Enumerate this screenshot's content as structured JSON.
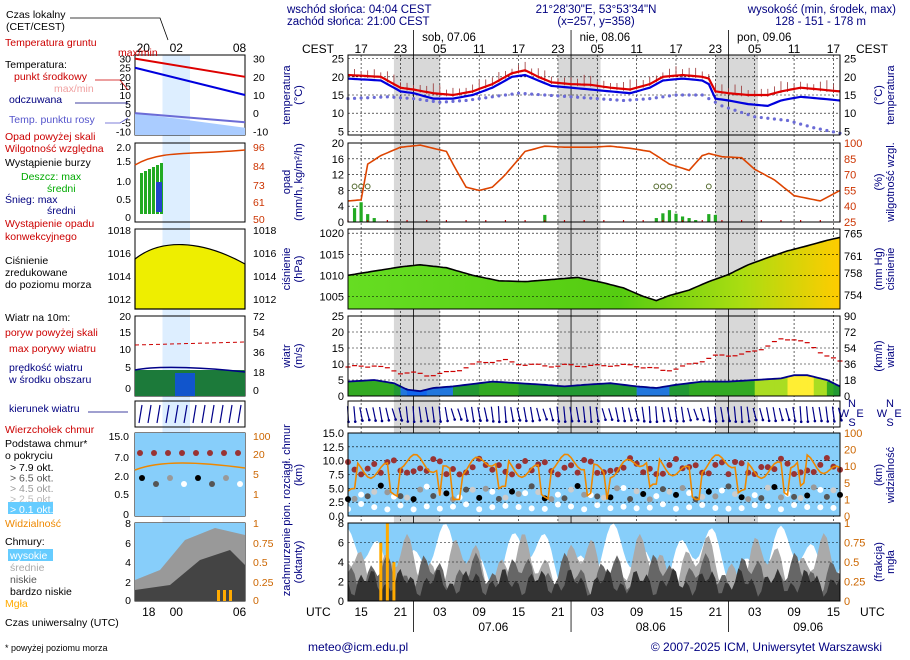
{
  "header": {
    "sunrise": "wschód słońca: 04:04 CEST",
    "sunset": "zachód słońca: 21:00 CEST",
    "coords": "21°28'30\"E, 53°53'34\"N",
    "grid": "(x=257, y=358)",
    "elev_title": "wysokość (min, środek, max)",
    "elev_values": "128 - 151 - 178 m"
  },
  "legend": {
    "time_local": [
      "Czas lokalny",
      "(CET/CEST)"
    ],
    "soil_temp": [
      "Temperatura gruntu",
      "max/min"
    ],
    "temp_title": "Temperatura:",
    "mid_point": "punkt środkowy",
    "max_min": "max/min",
    "perceived": "odczuwana",
    "dew": "Temp. punktu rosy",
    "precip_above": "Opad powyżej skali",
    "humidity": "Wilgotność względna",
    "storm": "Wystąpienie burzy",
    "rain_max": "Deszcz: max",
    "rain_mid": "średni",
    "snow_max": "Śnieg:  max",
    "snow_mid": "średni",
    "conv": [
      "Wystąpienie opadu",
      "konwekcyjnego"
    ],
    "pressure": [
      "Ciśnienie",
      "zredukowane",
      "do poziomu morza"
    ],
    "wind10": "Wiatr na 10m:",
    "gust_above": "poryw powyżej skali",
    "gust_max": "max porywy wiatru",
    "wind_speed": [
      "prędkość wiatru",
      "w środku obszaru"
    ],
    "wind_dir": "kierunek wiatru",
    "cloud_top": "Wierzchołek chmur",
    "cloud_base": [
      "Podstawa chmur*",
      "o pokryciu"
    ],
    "okt": [
      "> 7.9 okt.",
      "> 6.5 okt.",
      "> 4.5 okt.",
      "> 2.5 okt.",
      "> 0.1 okt."
    ],
    "visibility": "Widzialność",
    "clouds": "Chmury:",
    "cloud_levels": [
      "wysokie",
      "średnie",
      "niskie",
      "bardzo niskie"
    ],
    "fog": "Mgła",
    "utc_title": "Czas uniwersalny (UTC)",
    "footnote": "* powyżej poziomu morza"
  },
  "footer": {
    "email": "meteo@icm.edu.pl",
    "copyright": "© 2007-2025 ICM, Uniwersytet Warszawski"
  },
  "axes": {
    "cest": "CEST",
    "utc": "UTC",
    "cest_ticks": [
      "17",
      "23",
      "05",
      "11",
      "17",
      "23",
      "05",
      "11",
      "17",
      "23",
      "05",
      "11",
      "17"
    ],
    "utc_ticks": [
      "15",
      "21",
      "03",
      "09",
      "15",
      "21",
      "03",
      "09",
      "15",
      "21",
      "03",
      "09",
      "15"
    ],
    "dates_top": [
      "sob, 07.06",
      "nie, 08.06",
      "pon, 09.06"
    ],
    "dates_bottom": [
      "07.06",
      "08.06",
      "09.06"
    ],
    "legend_cest_ticks": [
      "20",
      "02",
      "08"
    ],
    "legend_utc_ticks": [
      "18",
      "00",
      "06"
    ],
    "temp_left": "temperatura\n(°C)",
    "temp_right": "(°C)\ntemperatura",
    "precip_left": "opad\n(mm/h, kg/m²/h)",
    "precip_right": "(%)\nwilgotność wzgl.",
    "press_left": "ciśnienie\n(hPa)",
    "press_right": "(mm Hg)\nciśnienie",
    "wind_left": "wiatr\n(m/s)",
    "wind_right": "(km/h)\nwiatr",
    "cloudbase_left": "pion. rozciągł. chmur\n(km)",
    "cloudbase_right": "(km)\nwidzialność",
    "clouds_left": "zachmurzenie\n(oktanty)",
    "clouds_right": "(frakcja)\nmgła",
    "compass": [
      "N",
      "S",
      "W",
      "E"
    ]
  },
  "chart_data": {
    "type": "line",
    "time_axis_utc_start": "06.06 13:00",
    "hours": 75,
    "panels": {
      "temperature": {
        "ylim": [
          4,
          26
        ],
        "ticks": [
          5,
          10,
          15,
          20,
          25
        ],
        "series": [
          {
            "name": "punkt środkowy",
            "color": "#dd0000",
            "values_keyframes": [
              [
                0,
                20.5
              ],
              [
                5,
                20
              ],
              [
                8,
                17
              ],
              [
                10,
                16.5
              ],
              [
                13,
                15.5
              ],
              [
                16,
                15
              ],
              [
                19,
                16
              ],
              [
                22,
                18
              ],
              [
                25,
                21
              ],
              [
                27,
                21.8
              ],
              [
                29,
                20
              ],
              [
                31,
                18.5
              ],
              [
                34,
                18
              ],
              [
                37,
                17.8
              ],
              [
                40,
                17
              ],
              [
                43,
                16.5
              ],
              [
                46,
                18
              ],
              [
                48,
                20
              ],
              [
                51,
                20.5
              ],
              [
                54,
                20
              ],
              [
                55,
                19.5
              ],
              [
                56,
                16
              ],
              [
                58,
                15.5
              ],
              [
                61,
                15
              ],
              [
                64,
                15
              ],
              [
                66,
                16
              ],
              [
                69,
                17
              ],
              [
                72,
                16.5
              ],
              [
                75,
                16
              ]
            ]
          },
          {
            "name": "odczuwana",
            "color": "#0000dd",
            "values_keyframes": [
              [
                0,
                19.5
              ],
              [
                5,
                19
              ],
              [
                8,
                16
              ],
              [
                10,
                15.5
              ],
              [
                13,
                14
              ],
              [
                16,
                14
              ],
              [
                19,
                15
              ],
              [
                22,
                17
              ],
              [
                25,
                20
              ],
              [
                27,
                20.5
              ],
              [
                29,
                19
              ],
              [
                31,
                17.5
              ],
              [
                34,
                17
              ],
              [
                37,
                16.5
              ],
              [
                40,
                16
              ],
              [
                43,
                15.5
              ],
              [
                46,
                17
              ],
              [
                48,
                19
              ],
              [
                51,
                19.5
              ],
              [
                54,
                19
              ],
              [
                55,
                18
              ],
              [
                56,
                14
              ],
              [
                58,
                13.5
              ],
              [
                61,
                12.5
              ],
              [
                64,
                12
              ],
              [
                66,
                13.5
              ],
              [
                69,
                14.5
              ],
              [
                72,
                14
              ],
              [
                75,
                13.5
              ]
            ]
          },
          {
            "name": "Temp. punktu rosy",
            "color": "#6b6bd6",
            "values_keyframes": [
              [
                0,
                14
              ],
              [
                6,
                14.5
              ],
              [
                10,
                14
              ],
              [
                14,
                13
              ],
              [
                18,
                13.5
              ],
              [
                22,
                14.5
              ],
              [
                26,
                15.5
              ],
              [
                30,
                15
              ],
              [
                34,
                14.5
              ],
              [
                38,
                14
              ],
              [
                42,
                13.5
              ],
              [
                46,
                14
              ],
              [
                50,
                15
              ],
              [
                54,
                15
              ],
              [
                57,
                12
              ],
              [
                62,
                9
              ],
              [
                67,
                8
              ],
              [
                71,
                6
              ],
              [
                75,
                4.5
              ]
            ]
          }
        ]
      },
      "precip_humidity": {
        "precip_ylim": [
          0,
          20
        ],
        "precip_ticks": [
          0,
          4,
          8,
          12,
          16,
          20
        ],
        "humidity_ylim": [
          25,
          100
        ],
        "humidity_ticks": [
          25,
          40,
          55,
          70,
          85,
          100
        ],
        "humidity_keyframes": [
          [
            0,
            45
          ],
          [
            2,
            46
          ],
          [
            3,
            80
          ],
          [
            5,
            88
          ],
          [
            8,
            96
          ],
          [
            11,
            98
          ],
          [
            15,
            92
          ],
          [
            16,
            80
          ],
          [
            18,
            58
          ],
          [
            20,
            55
          ],
          [
            22,
            58
          ],
          [
            24,
            70
          ],
          [
            27,
            92
          ],
          [
            30,
            97
          ],
          [
            33,
            96
          ],
          [
            37,
            96
          ],
          [
            40,
            97
          ],
          [
            43,
            95
          ],
          [
            46,
            92
          ],
          [
            49,
            80
          ],
          [
            52,
            74
          ],
          [
            54,
            88
          ],
          [
            55,
            90
          ],
          [
            57,
            87
          ],
          [
            60,
            86
          ],
          [
            62,
            75
          ],
          [
            65,
            65
          ],
          [
            68,
            50
          ],
          [
            72,
            45
          ],
          [
            75,
            55
          ]
        ],
        "rain_bars": [
          [
            1,
            3.5
          ],
          [
            2,
            5
          ],
          [
            3,
            2
          ],
          [
            4,
            1
          ],
          [
            30,
            1.8
          ],
          [
            47,
            1
          ],
          [
            48,
            2.2
          ],
          [
            49,
            3
          ],
          [
            50,
            2.1
          ],
          [
            51,
            1.4
          ],
          [
            52,
            1
          ],
          [
            53,
            0.5
          ],
          [
            55,
            2
          ],
          [
            56,
            1.8
          ]
        ],
        "storm_hours": [
          1,
          2,
          3,
          47,
          48,
          49,
          55
        ]
      },
      "pressure": {
        "ylim_hpa": [
          1002,
          1021
        ],
        "ticks_hpa": [
          1005,
          1010,
          1015,
          1020
        ],
        "ticks_mmhg": [
          754,
          758,
          761,
          765
        ],
        "keyframes": [
          [
            0,
            1010
          ],
          [
            4,
            1011
          ],
          [
            8,
            1012
          ],
          [
            11,
            1012.5
          ],
          [
            15,
            1011.8
          ],
          [
            19,
            1010
          ],
          [
            23,
            1008.7
          ],
          [
            27,
            1008.5
          ],
          [
            31,
            1009
          ],
          [
            35,
            1009.5
          ],
          [
            39,
            1008.2
          ],
          [
            42,
            1007
          ],
          [
            45,
            1005
          ],
          [
            47,
            1004
          ],
          [
            49,
            1005.2
          ],
          [
            52,
            1006.5
          ],
          [
            55,
            1008.5
          ],
          [
            58,
            1010.2
          ],
          [
            61,
            1012.5
          ],
          [
            64,
            1014.2
          ],
          [
            67,
            1015.8
          ],
          [
            70,
            1017
          ],
          [
            73,
            1018.3
          ],
          [
            75,
            1019
          ]
        ]
      },
      "wind": {
        "ylim_ms": [
          0,
          25
        ],
        "ticks_ms": [
          0,
          5,
          10,
          15,
          20,
          25
        ],
        "ticks_kmh": [
          0,
          18,
          36,
          54,
          72,
          90
        ],
        "speed_keyframes": [
          [
            0,
            4.5
          ],
          [
            4,
            5
          ],
          [
            7,
            4
          ],
          [
            9,
            2
          ],
          [
            11,
            1.5
          ],
          [
            13,
            2.5
          ],
          [
            16,
            3
          ],
          [
            18,
            3.5
          ],
          [
            22,
            4.5
          ],
          [
            26,
            4
          ],
          [
            30,
            3.5
          ],
          [
            33,
            3
          ],
          [
            36,
            3.5
          ],
          [
            40,
            4
          ],
          [
            44,
            3
          ],
          [
            47,
            2.5
          ],
          [
            50,
            3.5
          ],
          [
            54,
            4.5
          ],
          [
            58,
            4.5
          ],
          [
            62,
            5
          ],
          [
            66,
            5.5
          ],
          [
            68,
            6.5
          ],
          [
            70,
            6.5
          ],
          [
            73,
            5
          ],
          [
            75,
            3
          ]
        ],
        "gust_keyframes": [
          [
            0,
            9
          ],
          [
            4,
            10
          ],
          [
            8,
            7
          ],
          [
            12,
            6.5
          ],
          [
            16,
            8
          ],
          [
            20,
            10
          ],
          [
            24,
            11
          ],
          [
            28,
            10
          ],
          [
            32,
            9
          ],
          [
            36,
            9.5
          ],
          [
            40,
            10
          ],
          [
            44,
            9
          ],
          [
            48,
            8
          ],
          [
            52,
            10
          ],
          [
            56,
            12
          ],
          [
            60,
            13
          ],
          [
            64,
            16
          ],
          [
            66,
            17.5
          ],
          [
            68,
            17.5
          ],
          [
            70,
            16
          ],
          [
            73,
            13
          ],
          [
            75,
            11
          ]
        ]
      },
      "cloud_base": {
        "ylim_km": [
          0,
          15
        ],
        "ticks_km": [
          0,
          2.5,
          5,
          7.5,
          10,
          12.5,
          15
        ],
        "vis_ticks": [
          0,
          1,
          5,
          10,
          20,
          100
        ],
        "visibility_color": "#ee8800"
      },
      "clouds": {
        "ylim_okt": [
          0,
          8
        ],
        "ticks_okt": [
          0,
          2,
          4,
          6,
          8
        ],
        "fog_ticks": [
          0,
          0.25,
          0.5,
          0.75,
          1
        ],
        "fog_hours": [
          [
            5,
            0.75
          ],
          [
            6,
            1
          ],
          [
            7,
            0.5
          ]
        ]
      }
    }
  },
  "colors": {
    "axis_blue": "#000080",
    "label_red": "#cc0000",
    "band_gray": "#d8d8d8",
    "legend_band": "#ddeeff",
    "sky": "#87cefa"
  }
}
